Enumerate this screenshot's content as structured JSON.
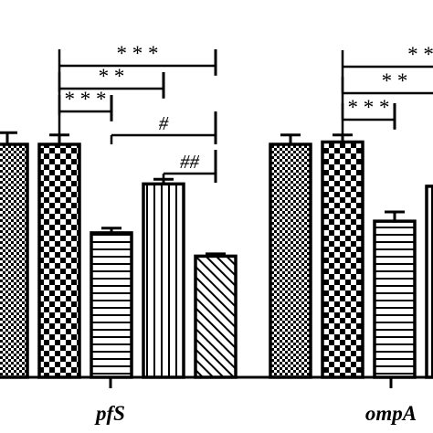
{
  "chart_data": {
    "type": "bar",
    "title": "",
    "xlabel": "",
    "ylabel": "",
    "ylim": [
      0,
      1.3
    ],
    "grid": false,
    "legend": "none",
    "categories": [
      "pfS",
      "ompA"
    ],
    "series": [
      {
        "pattern": "checker-fine",
        "values": [
          1.0,
          1.0
        ],
        "errors": [
          0.05,
          0.04
        ]
      },
      {
        "pattern": "checker-coarse",
        "values": [
          1.0,
          1.01
        ],
        "errors": [
          0.04,
          0.03
        ]
      },
      {
        "pattern": "horizontal-lines",
        "values": [
          0.62,
          0.67
        ],
        "errors": [
          0.02,
          0.04
        ]
      },
      {
        "pattern": "vertical-lines",
        "values": [
          0.83,
          0.82
        ],
        "errors": [
          0.02,
          0.02
        ]
      },
      {
        "pattern": "diagonal-lines",
        "values": [
          0.52,
          null
        ],
        "errors": [
          0.01,
          null
        ]
      }
    ],
    "annotations": [
      {
        "category": "pfS",
        "from_series": 1,
        "to_series": 4,
        "label": "* * *"
      },
      {
        "category": "pfS",
        "from_series": 1,
        "to_series": 3,
        "label": "* *"
      },
      {
        "category": "pfS",
        "from_series": 1,
        "to_series": 2,
        "label": "* * *"
      },
      {
        "category": "pfS",
        "from_series": 2,
        "to_series": 4,
        "label": "#"
      },
      {
        "category": "pfS",
        "from_series": 3,
        "to_series": 4,
        "label": "##"
      },
      {
        "category": "ompA",
        "from_series": 1,
        "to_series": 4,
        "label": "* *"
      },
      {
        "category": "ompA",
        "from_series": 1,
        "to_series": 3,
        "label": "* *"
      },
      {
        "category": "ompA",
        "from_series": 1,
        "to_series": 2,
        "label": "* * *"
      }
    ]
  },
  "colors": {
    "ink": "#000000",
    "background": "#ffffff"
  }
}
